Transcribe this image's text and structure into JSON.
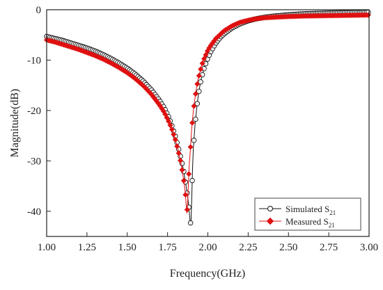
{
  "chart_data": {
    "type": "line",
    "xlabel": "Frequency(GHz)",
    "ylabel": "Magnitude(dB)",
    "xlim": [
      1.0,
      3.0
    ],
    "ylim": [
      -45,
      0
    ],
    "x_ticks": [
      1.0,
      1.25,
      1.5,
      1.75,
      2.0,
      2.25,
      2.5,
      2.75,
      3.0
    ],
    "x_tick_labels": [
      "1.00",
      "1.25",
      "1.50",
      "1.75",
      "2.00",
      "2.25",
      "2.50",
      "2.75",
      "3.00"
    ],
    "y_ticks": [
      0,
      -10,
      -20,
      -30,
      -40
    ],
    "y_tick_labels": [
      "0",
      "-10",
      "-20",
      "-30",
      "-40"
    ],
    "grid": false,
    "legend_position": "bottom-right",
    "colors": {
      "simulated": "#111111",
      "measured": "#e01010"
    },
    "series": [
      {
        "name": "Simulated S21",
        "legend_main": "Simulated S",
        "legend_sub": "21",
        "marker": "open-circle",
        "x": [
          1.0,
          1.05,
          1.1,
          1.15,
          1.2,
          1.25,
          1.3,
          1.35,
          1.4,
          1.45,
          1.5,
          1.55,
          1.6,
          1.65,
          1.7,
          1.73,
          1.76,
          1.78,
          1.8,
          1.82,
          1.84,
          1.85,
          1.86,
          1.87,
          1.88,
          1.89,
          1.895,
          1.9,
          1.905,
          1.91,
          1.92,
          1.93,
          1.94,
          1.95,
          1.96,
          1.98,
          2.0,
          2.02,
          2.05,
          2.08,
          2.1,
          2.15,
          2.2,
          2.25,
          2.3,
          2.35,
          2.4,
          2.5,
          2.6,
          2.7,
          2.8,
          2.9,
          3.0
        ],
        "y": [
          -5.3,
          -5.7,
          -6.1,
          -6.6,
          -7.1,
          -7.6,
          -8.2,
          -8.9,
          -9.7,
          -10.6,
          -11.6,
          -12.8,
          -14.2,
          -15.9,
          -18.0,
          -19.5,
          -21.5,
          -23.3,
          -25.3,
          -27.8,
          -30.5,
          -32.0,
          -34.0,
          -36.0,
          -38.5,
          -42.0,
          -42.6,
          -37.5,
          -31.5,
          -27.5,
          -23.0,
          -19.8,
          -17.2,
          -15.2,
          -13.6,
          -11.3,
          -9.6,
          -8.2,
          -6.6,
          -5.4,
          -4.8,
          -3.6,
          -2.8,
          -2.2,
          -1.8,
          -1.5,
          -1.3,
          -1.0,
          -0.8,
          -0.7,
          -0.6,
          -0.55,
          -0.5
        ]
      },
      {
        "name": "Measured S21",
        "legend_main": "Measured  S",
        "legend_sub": "21",
        "marker": "filled-diamond",
        "x": [
          1.0,
          1.05,
          1.1,
          1.15,
          1.2,
          1.25,
          1.3,
          1.35,
          1.4,
          1.45,
          1.5,
          1.55,
          1.6,
          1.65,
          1.7,
          1.73,
          1.76,
          1.78,
          1.8,
          1.82,
          1.83,
          1.84,
          1.85,
          1.86,
          1.865,
          1.87,
          1.875,
          1.88,
          1.885,
          1.89,
          1.895,
          1.9,
          1.91,
          1.92,
          1.93,
          1.94,
          1.95,
          1.97,
          2.0,
          2.02,
          2.05,
          2.08,
          2.1,
          2.15,
          2.2,
          2.25,
          2.3,
          2.35,
          2.4,
          2.5,
          2.6,
          2.7,
          2.8,
          2.9,
          3.0
        ],
        "y": [
          -6.0,
          -6.4,
          -6.9,
          -7.4,
          -7.9,
          -8.5,
          -9.1,
          -9.8,
          -10.6,
          -11.5,
          -12.5,
          -13.7,
          -15.1,
          -16.8,
          -18.9,
          -20.4,
          -22.4,
          -24.0,
          -26.0,
          -28.6,
          -30.0,
          -31.8,
          -33.8,
          -36.3,
          -38.5,
          -40.4,
          -38.0,
          -34.0,
          -30.5,
          -28.5,
          -26.0,
          -23.5,
          -20.0,
          -17.5,
          -15.5,
          -13.8,
          -12.4,
          -10.2,
          -8.0,
          -7.0,
          -5.7,
          -4.8,
          -4.2,
          -3.2,
          -2.5,
          -2.1,
          -1.8,
          -1.6,
          -1.5,
          -1.35,
          -1.25,
          -1.2,
          -1.15,
          -1.1,
          -1.05
        ]
      }
    ]
  }
}
